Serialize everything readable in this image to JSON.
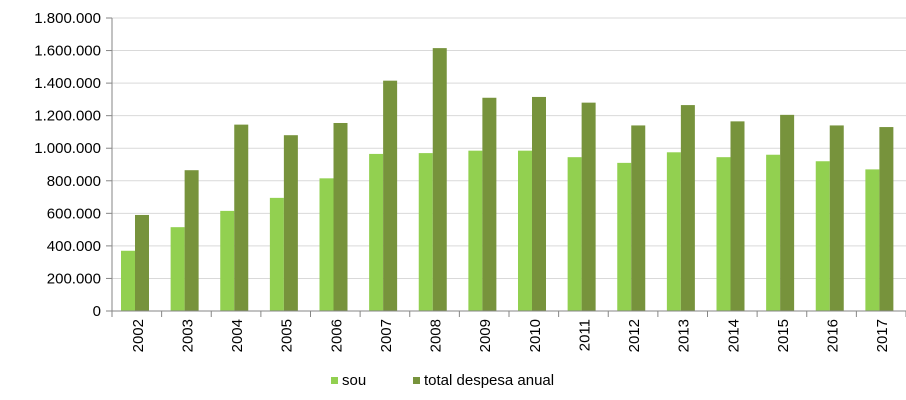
{
  "chart_data": {
    "type": "bar",
    "categories": [
      "2002",
      "2003",
      "2004",
      "2005",
      "2006",
      "2007",
      "2008",
      "2009",
      "2010",
      "2011",
      "2012",
      "2013",
      "2014",
      "2015",
      "2016",
      "2017"
    ],
    "series": [
      {
        "name": "sou",
        "color": "#92d050",
        "values": [
          370000,
          515000,
          615000,
          695000,
          815000,
          965000,
          970000,
          985000,
          985000,
          945000,
          910000,
          975000,
          945000,
          960000,
          920000,
          870000
        ]
      },
      {
        "name": "total despesa anual",
        "color": "#77933c",
        "values": [
          590000,
          865000,
          1145000,
          1080000,
          1155000,
          1415000,
          1615000,
          1310000,
          1315000,
          1280000,
          1140000,
          1265000,
          1165000,
          1205000,
          1140000,
          1130000
        ]
      }
    ],
    "ylim": [
      0,
      1800000
    ],
    "yticks": [
      "0",
      "200.000",
      "400.000",
      "600.000",
      "800.000",
      "1.000.000",
      "1.200.000",
      "1.400.000",
      "1.600.000",
      "1.800.000"
    ],
    "ytick_values": [
      0,
      200000,
      400000,
      600000,
      800000,
      1000000,
      1200000,
      1400000,
      1600000,
      1800000
    ],
    "grid": true,
    "legend_position": "bottom",
    "title": "",
    "xlabel": "",
    "ylabel": ""
  }
}
